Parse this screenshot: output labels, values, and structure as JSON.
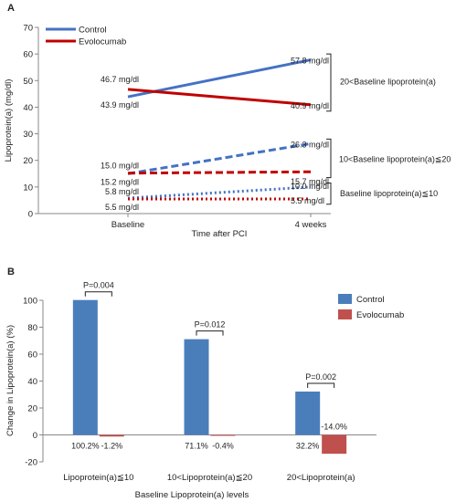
{
  "chart_data": [
    {
      "panel_label": "A",
      "type": "line",
      "xlabel": "Time after PCI",
      "ylabel": "Lipoprotein(a) (mg/dl)",
      "categories": [
        "Baseline",
        "4 weeks"
      ],
      "ylim": [
        0,
        70
      ],
      "yticks": [
        "0",
        "10",
        "20",
        "30",
        "40",
        "50",
        "60",
        "70"
      ],
      "legend": [
        "Control",
        "Evolocumab"
      ],
      "colors": {
        "control": "#4472c4",
        "evolocumab": "#c00000"
      },
      "series": [
        {
          "name": "Control",
          "group": 0,
          "style": "solid",
          "color": "#4472c4",
          "values": [
            43.9,
            57.8
          ],
          "labels": [
            "43.9 mg/dl",
            "57.8 mg/dl"
          ]
        },
        {
          "name": "Evolocumab",
          "group": 0,
          "style": "solid",
          "color": "#c00000",
          "values": [
            46.7,
            40.9
          ],
          "labels": [
            "46.7 mg/dl",
            "40.9 mg/dl"
          ]
        },
        {
          "name": "Control",
          "group": 1,
          "style": "dashed",
          "color": "#4472c4",
          "values": [
            15.0,
            26.3
          ],
          "labels": [
            "15.0 mg/dl",
            "26.3 mg/dl"
          ]
        },
        {
          "name": "Evolocumab",
          "group": 1,
          "style": "dashed",
          "color": "#c00000",
          "values": [
            15.2,
            15.7
          ],
          "labels": [
            "15.2 mg/dl",
            "15.7 mg/dl"
          ]
        },
        {
          "name": "Control",
          "group": 2,
          "style": "dotted",
          "color": "#4472c4",
          "values": [
            5.8,
            10.0
          ],
          "labels": [
            "5.8 mg/dl",
            "10.0 mg/dl"
          ]
        },
        {
          "name": "Evolocumab",
          "group": 2,
          "style": "dotted",
          "color": "#c00000",
          "values": [
            5.5,
            5.5
          ],
          "labels": [
            "5.5 mg/dl",
            "5.5 mg/dl"
          ]
        }
      ],
      "groups": [
        "20<Baseline lipoprotein(a)",
        "10<Baseline lipoprotein(a)≦20",
        "Baseline lipoprotein(a)≦10"
      ]
    },
    {
      "panel_label": "B",
      "type": "bar",
      "xlabel": "Baseline Lipoprotein(a) levels",
      "ylabel": "Change in Lipoprotein(a) (%)",
      "categories": [
        "Lipoprotein(a)≦10",
        "10<Lipoprotein(a)≦20",
        "20<Lipoprotein(a)"
      ],
      "ylim": [
        -20,
        100
      ],
      "yticks": [
        "-20",
        "0",
        "20",
        "40",
        "60",
        "80",
        "100"
      ],
      "legend": [
        "Control",
        "Evolocumab"
      ],
      "series": [
        {
          "name": "Control",
          "color": "#4a7ebb",
          "values": [
            100.2,
            71.1,
            32.2
          ],
          "labels": [
            "100.2%",
            "71.1%",
            "32.2%"
          ]
        },
        {
          "name": "Evolocumab",
          "color": "#c0504d",
          "values": [
            -1.2,
            -0.4,
            -14.0
          ],
          "labels": [
            "-1.2%",
            "-0.4%",
            "-14.0%"
          ]
        }
      ],
      "pvalues": [
        "P=0.004",
        "P=0.012",
        "P=0.002"
      ]
    }
  ]
}
